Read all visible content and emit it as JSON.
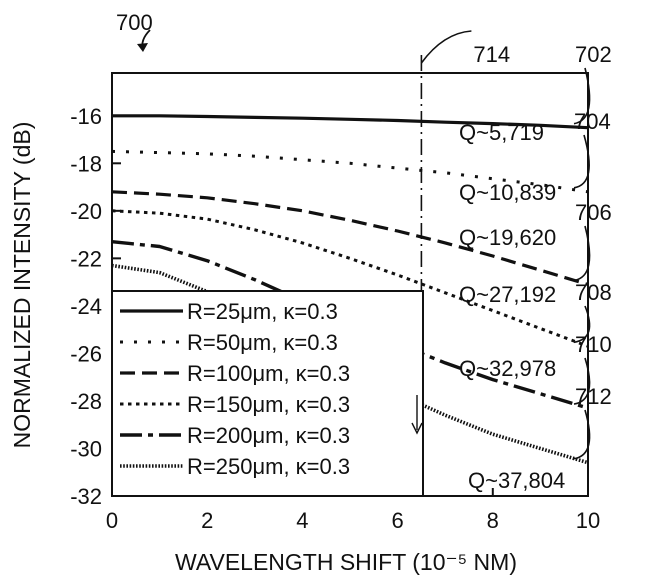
{
  "chart_data": {
    "type": "line",
    "figure_label": "700",
    "xlabel": "WAVELENGTH SHIFT (10⁻⁵ NM)",
    "ylabel": "NORMALIZED INTENSITY (dB)",
    "xlim": [
      0,
      10
    ],
    "ylim": [
      -32,
      -14.2
    ],
    "x_ticks": [
      0,
      2,
      4,
      6,
      8,
      10
    ],
    "y_ticks": [
      -16,
      -18,
      -20,
      -22,
      -24,
      -26,
      -28,
      -30,
      -32
    ],
    "grid": false,
    "legend_position": "bottom-left",
    "marker_line": {
      "x": 6.5,
      "label": "714"
    },
    "series": [
      {
        "name": "R=25μm, κ=0.3",
        "ref": "702",
        "q": "Q~5,719",
        "dash": "solid",
        "x": [
          0,
          1,
          2,
          3,
          4,
          5,
          6,
          7,
          8,
          9,
          10
        ],
        "y": [
          -16.0,
          -16.0,
          -16.03,
          -16.07,
          -16.1,
          -16.15,
          -16.2,
          -16.27,
          -16.33,
          -16.4,
          -16.5
        ]
      },
      {
        "name": "R=50μm, κ=0.3",
        "ref": "704",
        "q": "Q~10,839",
        "dash": "dot",
        "x": [
          0,
          1,
          2,
          3,
          4,
          5,
          6,
          7,
          8,
          9,
          10
        ],
        "y": [
          -17.5,
          -17.55,
          -17.6,
          -17.7,
          -17.85,
          -18.0,
          -18.2,
          -18.4,
          -18.65,
          -18.9,
          -19.2
        ]
      },
      {
        "name": "R=100μm, κ=0.3",
        "ref": "706",
        "q": "Q~19,620",
        "dash": "dash",
        "x": [
          0,
          1,
          2,
          3,
          4,
          5,
          6,
          7,
          8,
          9,
          10
        ],
        "y": [
          -19.2,
          -19.3,
          -19.45,
          -19.7,
          -20.0,
          -20.4,
          -20.85,
          -21.35,
          -21.9,
          -22.5,
          -23.1
        ]
      },
      {
        "name": "R=150μm, κ=0.3",
        "ref": "708",
        "q": "Q~27,192",
        "dash": "dot-fine",
        "x": [
          0,
          1,
          2,
          3,
          4,
          5,
          6,
          7,
          8,
          9,
          10
        ],
        "y": [
          -20.0,
          -20.1,
          -20.35,
          -20.8,
          -21.35,
          -22.0,
          -22.7,
          -23.45,
          -24.2,
          -24.95,
          -25.7
        ]
      },
      {
        "name": "R=200μm, κ=0.3",
        "ref": "710",
        "q": "Q~32,978",
        "dash": "dashdot",
        "x": [
          0,
          1,
          2,
          3,
          4,
          5,
          6,
          7,
          8,
          9,
          10
        ],
        "y": [
          -21.3,
          -21.5,
          -22.1,
          -22.9,
          -23.8,
          -24.7,
          -25.6,
          -26.4,
          -27.1,
          -27.7,
          -28.3
        ]
      },
      {
        "name": "R=250μm, κ=0.3",
        "ref": "712",
        "q": "Q~37,804",
        "dash": "dense-dot",
        "x": [
          0,
          1,
          2,
          3,
          4,
          5,
          6,
          7,
          8,
          9,
          10
        ],
        "y": [
          -22.3,
          -22.6,
          -23.4,
          -24.5,
          -25.6,
          -26.7,
          -27.7,
          -28.6,
          -29.4,
          -30.0,
          -30.6
        ]
      }
    ]
  }
}
